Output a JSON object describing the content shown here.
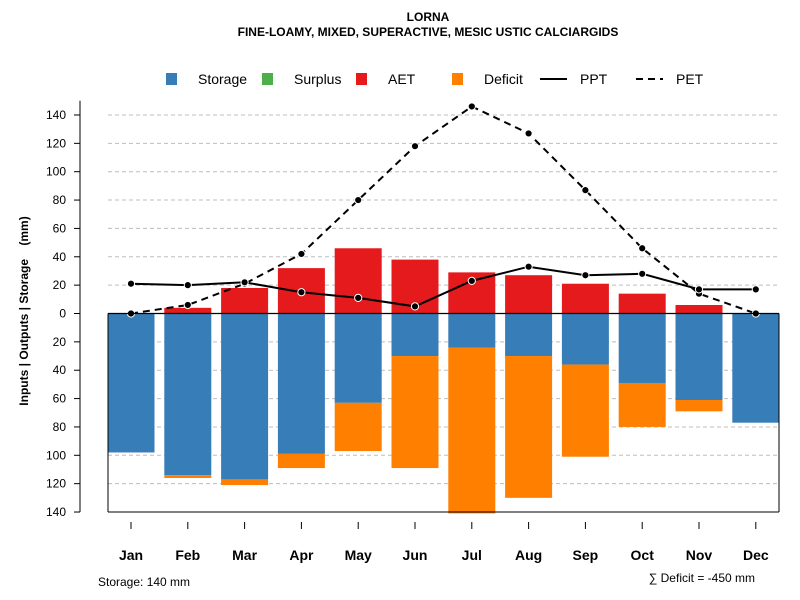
{
  "chart_data": {
    "type": "bar",
    "title": "LORNA",
    "subtitle": "FINE-LOAMY, MIXED, SUPERACTIVE, MESIC USTIC CALCIARGIDS",
    "ylabel": "Inputs | Outputs | Storage    (mm)",
    "xlabel": "",
    "ylim": [
      -140,
      150
    ],
    "yticks": [
      140,
      120,
      100,
      80,
      60,
      40,
      20,
      0,
      20,
      40,
      60,
      80,
      100,
      120,
      140
    ],
    "categories": [
      "Jan",
      "Feb",
      "Mar",
      "Apr",
      "May",
      "Jun",
      "Jul",
      "Aug",
      "Sep",
      "Oct",
      "Nov",
      "Dec"
    ],
    "legend": [
      {
        "label": "Storage",
        "kind": "box",
        "color": "#377EB8"
      },
      {
        "label": "Surplus",
        "kind": "box",
        "color": "#4DAF4A"
      },
      {
        "label": "AET",
        "kind": "box",
        "color": "#E41A1C"
      },
      {
        "label": "Deficit",
        "kind": "box",
        "color": "#FF7F00"
      },
      {
        "label": "PPT",
        "kind": "solid",
        "color": "#000000"
      },
      {
        "label": "PET",
        "kind": "dashed",
        "color": "#000000"
      }
    ],
    "series": [
      {
        "name": "Storage",
        "color": "#377EB8",
        "values": [
          98,
          114,
          117,
          99,
          63,
          30,
          24,
          30,
          36,
          49,
          61,
          77
        ]
      },
      {
        "name": "Surplus",
        "color": "#4DAF4A",
        "values": [
          0,
          0,
          0,
          0,
          0,
          0,
          0,
          0,
          0,
          0,
          0,
          0
        ]
      },
      {
        "name": "AET",
        "color": "#E41A1C",
        "values": [
          0,
          4,
          18,
          32,
          46,
          38,
          29,
          27,
          21,
          14,
          6,
          0
        ]
      },
      {
        "name": "Deficit",
        "color": "#FF7F00",
        "values": [
          0,
          2,
          4,
          10,
          34,
          79,
          117,
          100,
          65,
          31,
          8,
          0
        ]
      },
      {
        "name": "PPT",
        "color": "#000000",
        "values": [
          21,
          20,
          22,
          15,
          11,
          5,
          23,
          33,
          27,
          28,
          17,
          17
        ]
      },
      {
        "name": "PET",
        "color": "#000000",
        "values": [
          0,
          6,
          21,
          42,
          80,
          118,
          146,
          127,
          87,
          46,
          14,
          0
        ]
      }
    ],
    "annotations": {
      "storage": "Storage: 140 mm",
      "deficit": "∑ Deficit = -450 mm"
    }
  }
}
